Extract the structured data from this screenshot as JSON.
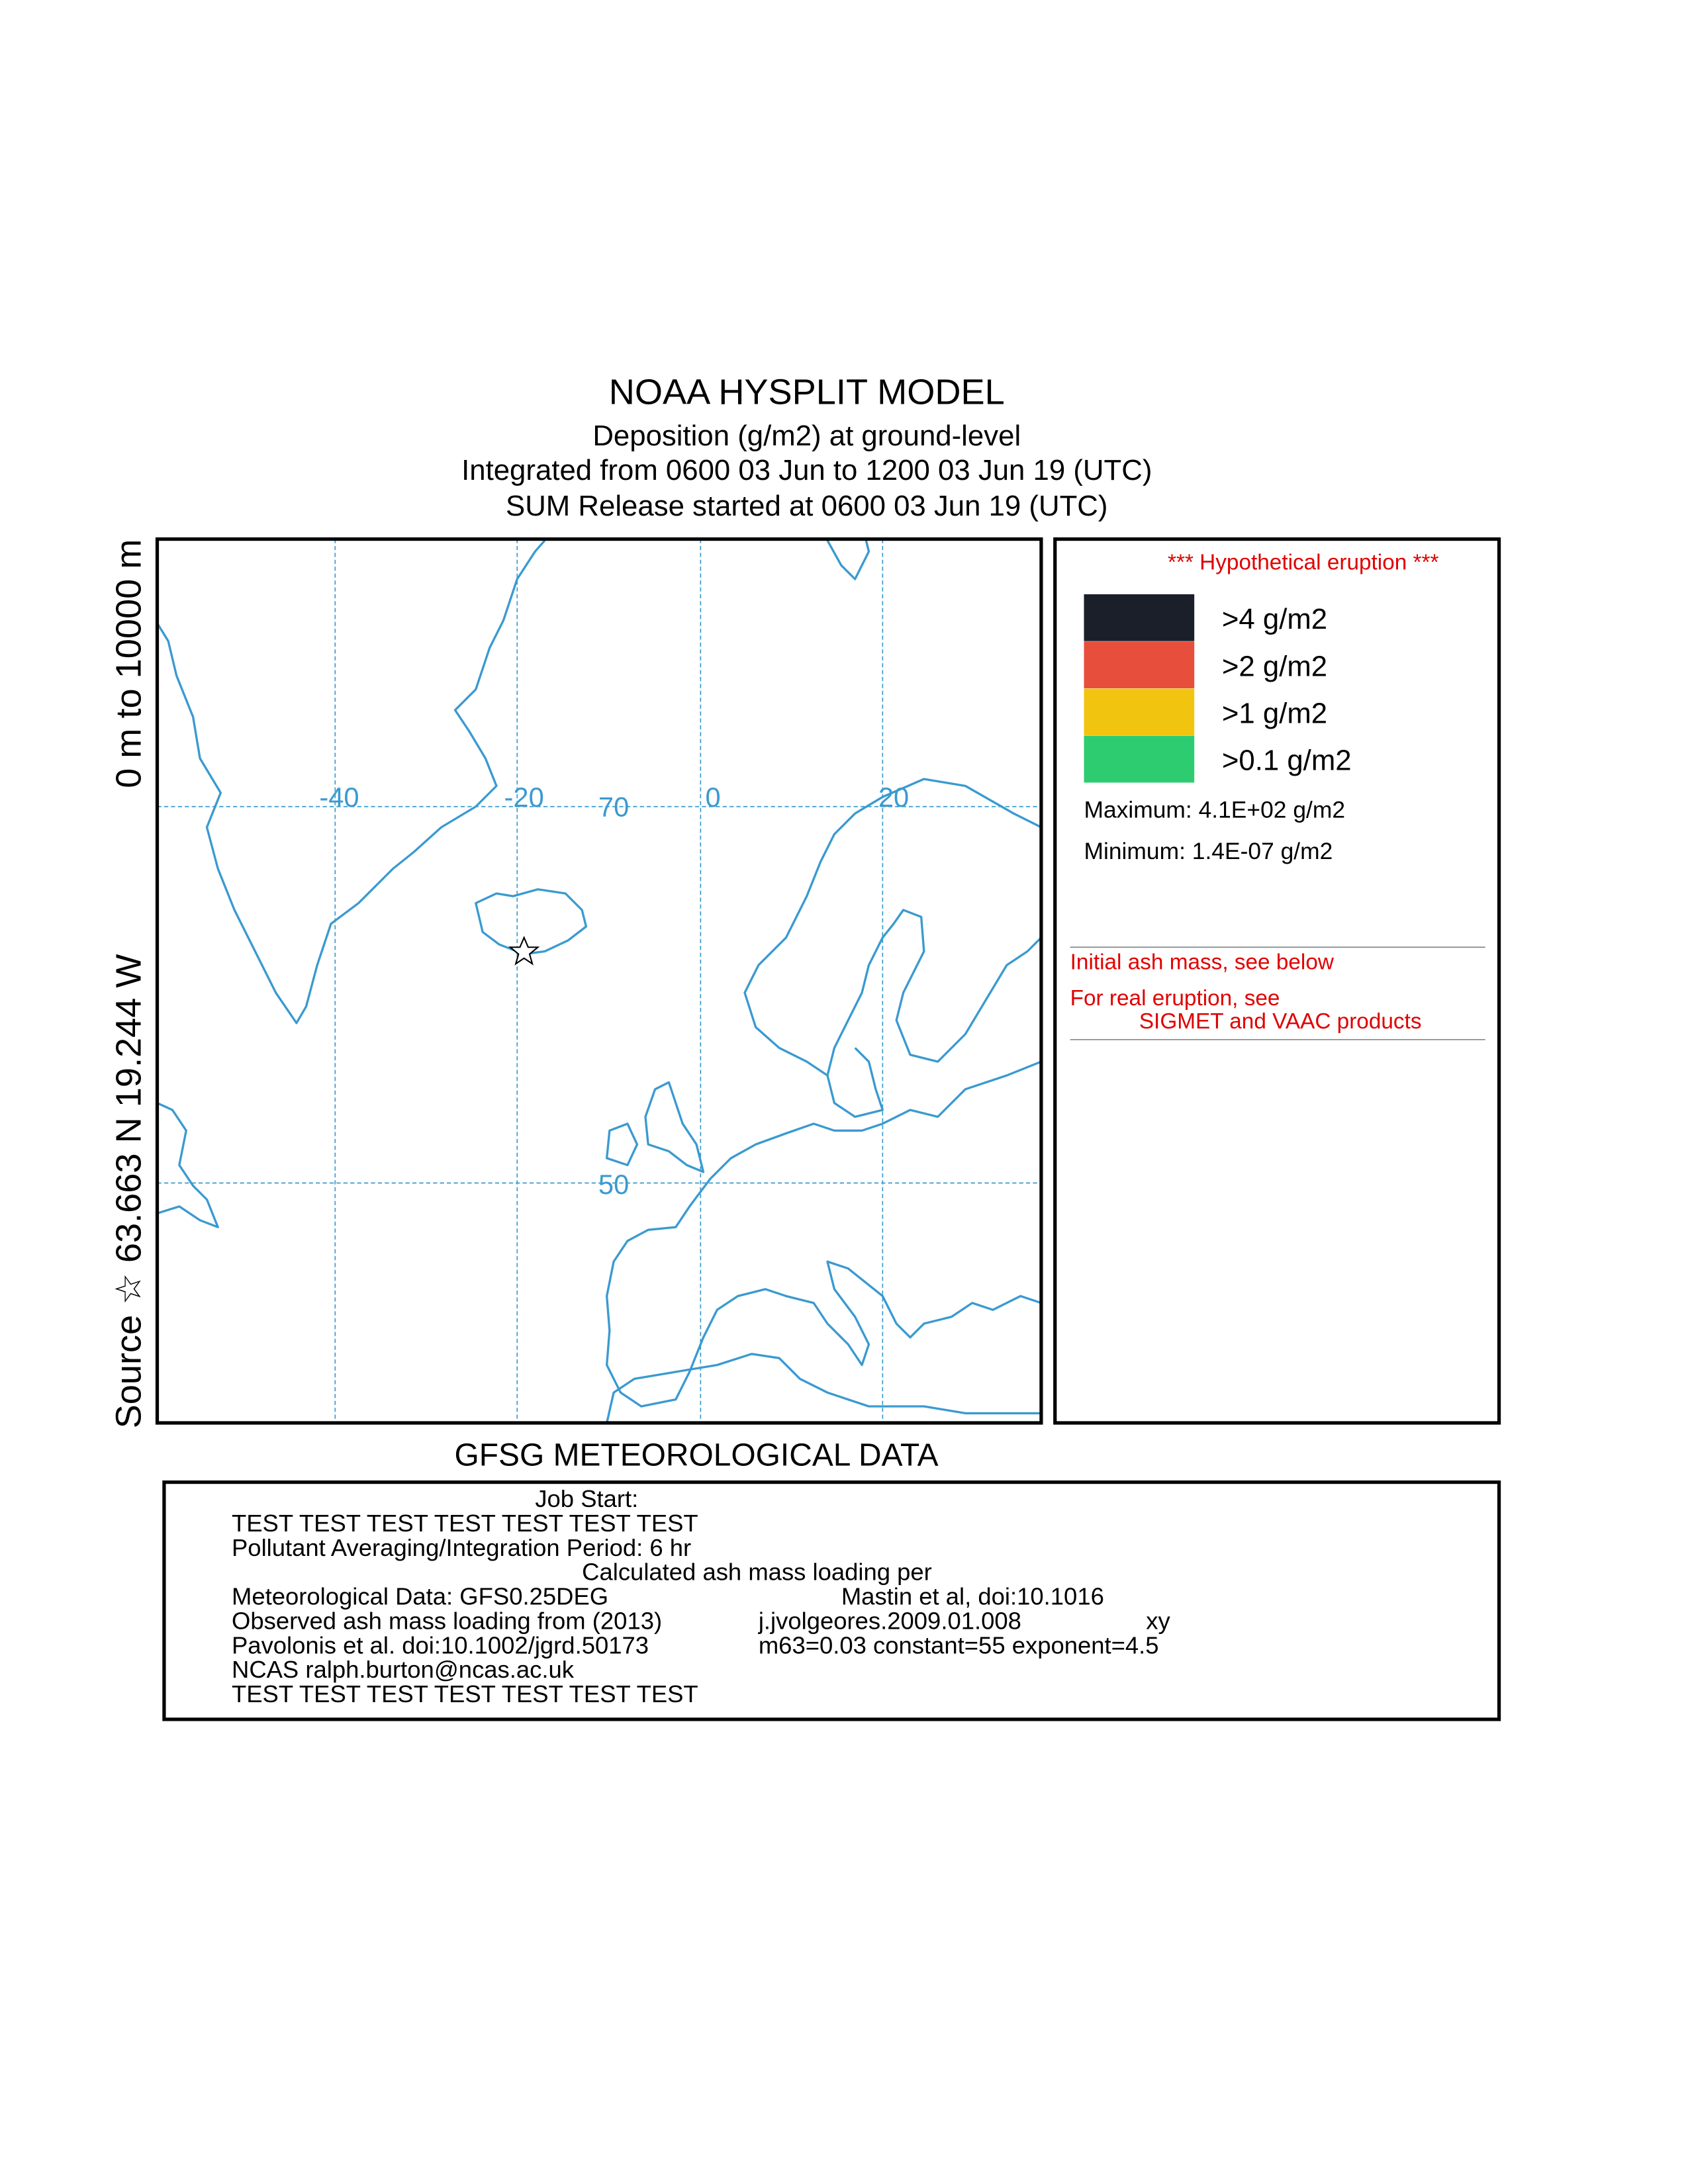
{
  "header": {
    "title": "NOAA HYSPLIT MODEL",
    "subtitle_lines": [
      "Deposition  (g/m2) at ground-level",
      "Integrated from 0600 03 Jun to 1200 03 Jun 19 (UTC)",
      "SUM  Release started at 0600 03 Jun 19 (UTC)"
    ]
  },
  "source_label": "Source ☆ 63.663 N  19.244 W",
  "height_label": "0 m to 10000 m",
  "map": {
    "longitude_labels": [
      "-40",
      "-20",
      "0",
      "20"
    ],
    "latitude_labels": [
      "70",
      "50"
    ]
  },
  "legend": {
    "note": "*** Hypothetical eruption ***",
    "items": [
      {
        "label": ">4 g/m2",
        "color": "#1b1f2a"
      },
      {
        "label": ">2 g/m2",
        "color": "#e84e3c"
      },
      {
        "label": ">1 g/m2",
        "color": "#f1c40f"
      },
      {
        "label": ">0.1 g/m2",
        "color": "#2ecc71"
      }
    ],
    "maximum": "Maximum: 4.1E+02 g/m2",
    "minimum": "Minimum: 1.4E-07 g/m2",
    "notes": [
      "Initial ash mass, see below",
      "For real eruption, see",
      "SIGMET and VAAC products"
    ]
  },
  "met_data": "GFSG METEOROLOGICAL DATA",
  "footer": {
    "rows": [
      [
        "Job Start:"
      ],
      [
        "TEST TEST TEST TEST TEST TEST TEST"
      ],
      [
        "Pollutant Averaging/Integration Period: 6 hr"
      ],
      [
        "Calculated ash mass loading per"
      ],
      [
        "Meteorological Data: GFS0.25DEG",
        "Mastin et al, doi:10.1016"
      ],
      [
        "Observed ash mass loading from (2013)",
        "j.jvolgeores.2009.01.008",
        "xy"
      ],
      [
        "Pavolonis et al. doi:10.1002/jgrd.50173",
        "m63=0.03  constant=55 exponent=4.5"
      ],
      [
        "NCAS ralph.burton@ncas.ac.uk"
      ],
      [
        "TEST TEST TEST TEST TEST TEST TEST"
      ]
    ]
  }
}
